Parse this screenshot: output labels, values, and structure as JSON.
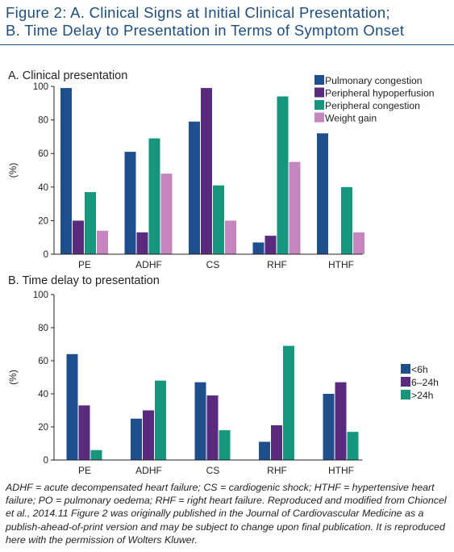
{
  "figure": {
    "title_line1": "Figure 2: A. Clinical Signs at Initial Clinical Presentation;",
    "title_line2": "B. Time Delay to Presentation in Terms of Symptom Onset",
    "caption": "ADHF = acute decompensated heart failure; CS = cardiogenic shock; HTHF = hypertensive heart failure; PO = pulmonary oedema; RHF = right heart failure. Reproduced and modified from Chioncel et al., 2014.11 Figure 2 was originally published in the Journal of Cardiovascular Medicine as a publish-ahead-of-print version and may be subject to change upon final publication. It is reproduced here with the permission of Wolters Kluwer."
  },
  "chart_data": [
    {
      "type": "bar",
      "title": "A. Clinical presentation",
      "ylabel": "(%)",
      "ylim": [
        0,
        100
      ],
      "yticks": [
        0,
        20,
        40,
        60,
        80,
        100
      ],
      "categories": [
        "PE",
        "ADHF",
        "CS",
        "RHF",
        "HTHF"
      ],
      "legend_position": "top-right",
      "series": [
        {
          "name": "Pulmonary congestion",
          "color": "#1f4e8c",
          "values": [
            99,
            61,
            79,
            7,
            72
          ]
        },
        {
          "name": "Peripheral hypoperfusion",
          "color": "#5a2a7e",
          "values": [
            20,
            13,
            99,
            11,
            null
          ]
        },
        {
          "name": "Peripheral  congestion",
          "color": "#17967e",
          "values": [
            37,
            69,
            41,
            94,
            40
          ]
        },
        {
          "name": "Weight gain",
          "color": "#c586c0",
          "values": [
            14,
            48,
            20,
            55,
            13
          ]
        }
      ]
    },
    {
      "type": "bar",
      "title": "B. Time delay to presentation",
      "ylabel": "(%)",
      "ylim": [
        0,
        100
      ],
      "yticks": [
        0,
        20,
        40,
        60,
        80,
        100
      ],
      "categories": [
        "PE",
        "ADHF",
        "CS",
        "RHF",
        "HTHF"
      ],
      "legend_position": "right",
      "series": [
        {
          "name": "<6h",
          "color": "#1f4e8c",
          "values": [
            64,
            25,
            47,
            11,
            40
          ]
        },
        {
          "name": "6–24h",
          "color": "#5a2a7e",
          "values": [
            33,
            30,
            39,
            21,
            47
          ]
        },
        {
          "name": ">24h",
          "color": "#17967e",
          "values": [
            6,
            48,
            18,
            69,
            17
          ]
        }
      ]
    }
  ]
}
